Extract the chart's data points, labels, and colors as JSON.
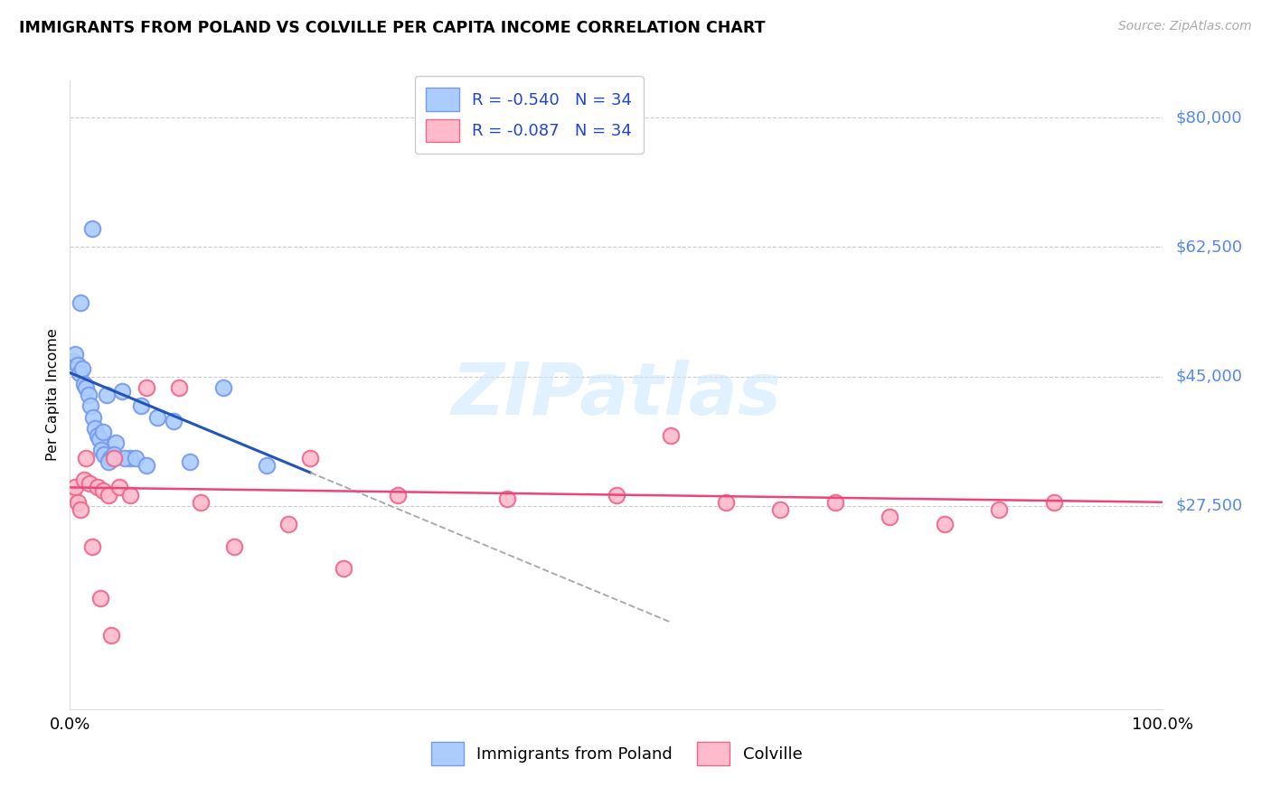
{
  "title": "IMMIGRANTS FROM POLAND VS COLVILLE PER CAPITA INCOME CORRELATION CHART",
  "source": "Source: ZipAtlas.com",
  "ylabel": "Per Capita Income",
  "ylim": [
    0,
    85000
  ],
  "xlim": [
    0,
    100
  ],
  "ytick_vals": [
    27500,
    45000,
    62500,
    80000
  ],
  "ytick_labels": [
    "$27,500",
    "$45,000",
    "$62,500",
    "$80,000"
  ],
  "R_blue": -0.54,
  "N_blue": 34,
  "R_pink": -0.087,
  "N_pink": 34,
  "blue_edge": "#7799ee",
  "blue_face": "#aaccff",
  "pink_edge": "#ee6688",
  "pink_face": "#ffbbcc",
  "trend_blue": "#2255bb",
  "trend_pink": "#ee4477",
  "trend_dash": "#aaaaaa",
  "ytick_color": "#5588ee",
  "legend_label_blue": "Immigrants from Poland",
  "legend_label_pink": "Colville",
  "watermark": "ZIPatlas",
  "blue_x": [
    0.3,
    0.5,
    0.7,
    0.9,
    1.1,
    1.3,
    1.5,
    1.7,
    1.9,
    2.1,
    2.3,
    2.5,
    2.7,
    2.9,
    3.1,
    3.4,
    3.7,
    4.2,
    4.8,
    5.5,
    6.5,
    8.0,
    9.5,
    11.0,
    14.0,
    18.0,
    1.0,
    2.0,
    3.0,
    4.0,
    5.0,
    3.5,
    6.0,
    7.0
  ],
  "blue_y": [
    47000,
    48000,
    46500,
    45500,
    46000,
    44000,
    43500,
    42500,
    41000,
    39500,
    38000,
    37000,
    36500,
    35000,
    34500,
    42500,
    34000,
    36000,
    43000,
    34000,
    41000,
    39500,
    39000,
    33500,
    43500,
    33000,
    55000,
    65000,
    37500,
    34500,
    34000,
    33500,
    34000,
    33000
  ],
  "pink_x": [
    0.2,
    0.5,
    0.7,
    1.0,
    1.3,
    1.5,
    1.8,
    2.0,
    2.5,
    3.0,
    3.5,
    4.0,
    4.5,
    5.5,
    7.0,
    10.0,
    12.0,
    15.0,
    20.0,
    25.0,
    30.0,
    40.0,
    50.0,
    55.0,
    60.0,
    65.0,
    70.0,
    75.0,
    80.0,
    85.0,
    90.0,
    2.8,
    3.8,
    22.0
  ],
  "pink_y": [
    29000,
    30000,
    28000,
    27000,
    31000,
    34000,
    30500,
    22000,
    30000,
    29500,
    29000,
    34000,
    30000,
    29000,
    43500,
    43500,
    28000,
    22000,
    25000,
    19000,
    29000,
    28500,
    29000,
    37000,
    28000,
    27000,
    28000,
    26000,
    25000,
    27000,
    28000,
    15000,
    10000,
    34000
  ],
  "blue_trend_x0": 0,
  "blue_trend_y0": 45500,
  "blue_trend_x1": 22,
  "blue_trend_y1": 32000,
  "blue_dash_x0": 22,
  "blue_dash_x1": 55,
  "pink_trend_x0": 0,
  "pink_trend_y0": 30000,
  "pink_trend_x1": 100,
  "pink_trend_y1": 28000
}
